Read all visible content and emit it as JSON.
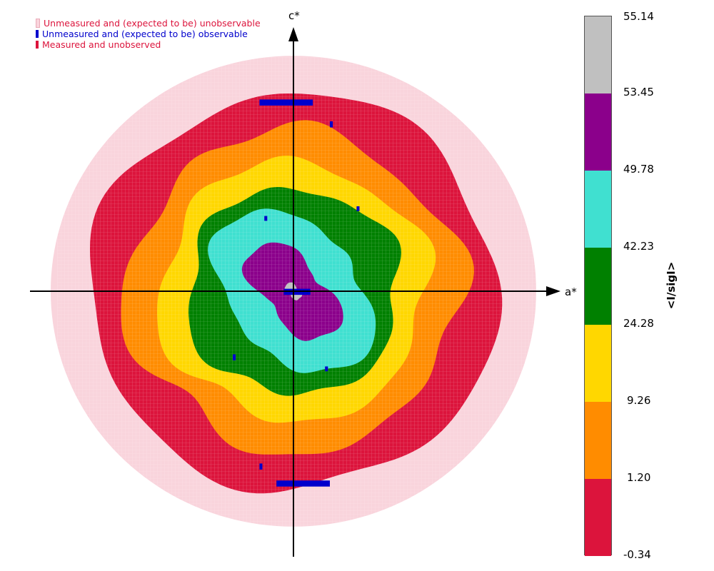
{
  "legend": {
    "items": [
      {
        "label": "Unmeasured and (expected to be) unobservable",
        "color": "#f9d4dc",
        "text_color": "#dc143c"
      },
      {
        "label": "Unmeasured and (expected to be) observable",
        "color": "#0000cc",
        "text_color": "#0000cc"
      },
      {
        "label": "Measured and unobserved",
        "color": "#dc143c",
        "text_color": "#dc143c"
      }
    ]
  },
  "axes": {
    "x_label": "a*",
    "y_label": "c*"
  },
  "colorbar": {
    "title": "<I/sigI>",
    "ticks": [
      "55.14",
      "53.45",
      "49.78",
      "42.23",
      "24.28",
      "9.26",
      "1.20",
      "-0.34"
    ],
    "segments": [
      {
        "color": "#c0c0c0"
      },
      {
        "color": "#8b008b"
      },
      {
        "color": "#40e0d0"
      },
      {
        "color": "#008000"
      },
      {
        "color": "#ffd700"
      },
      {
        "color": "#ff8c00"
      },
      {
        "color": "#dc143c"
      }
    ]
  },
  "chart_data": {
    "type": "heatmap",
    "title": "",
    "xlabel": "a*",
    "ylabel": "c*",
    "colorbar_label": "<I/sigI>",
    "bin_edges": [
      -0.34,
      1.2,
      9.26,
      24.28,
      42.23,
      49.78,
      53.45,
      55.14
    ],
    "bin_colors": [
      "#dc143c",
      "#ff8c00",
      "#ffd700",
      "#008000",
      "#40e0d0",
      "#8b008b",
      "#c0c0c0"
    ],
    "categories_special": {
      "unmeasured_unobservable": "#f9d4dc",
      "unmeasured_observable": "#0000cc",
      "measured_unobserved": "#dc143c"
    },
    "regions": [
      {
        "category": "unmeasured_unobservable",
        "shape": "disk",
        "radius": 1.0
      },
      {
        "category": "measured_unobserved",
        "shape": "irregular-ring",
        "radius": 0.84
      },
      {
        "category": "bin",
        "bin_index": 1,
        "radius": 0.68
      },
      {
        "category": "bin",
        "bin_index": 2,
        "radius": 0.55
      },
      {
        "category": "bin",
        "bin_index": 3,
        "radius": 0.44
      },
      {
        "category": "bin",
        "bin_index": 4,
        "radius": 0.32
      },
      {
        "category": "bin",
        "bin_index": 5,
        "radius": 0.17
      },
      {
        "category": "bin",
        "bin_index": 6,
        "radius": 0.03
      }
    ],
    "axis_range": [
      -1,
      1
    ],
    "grid": false,
    "legend_position": "top-left"
  }
}
